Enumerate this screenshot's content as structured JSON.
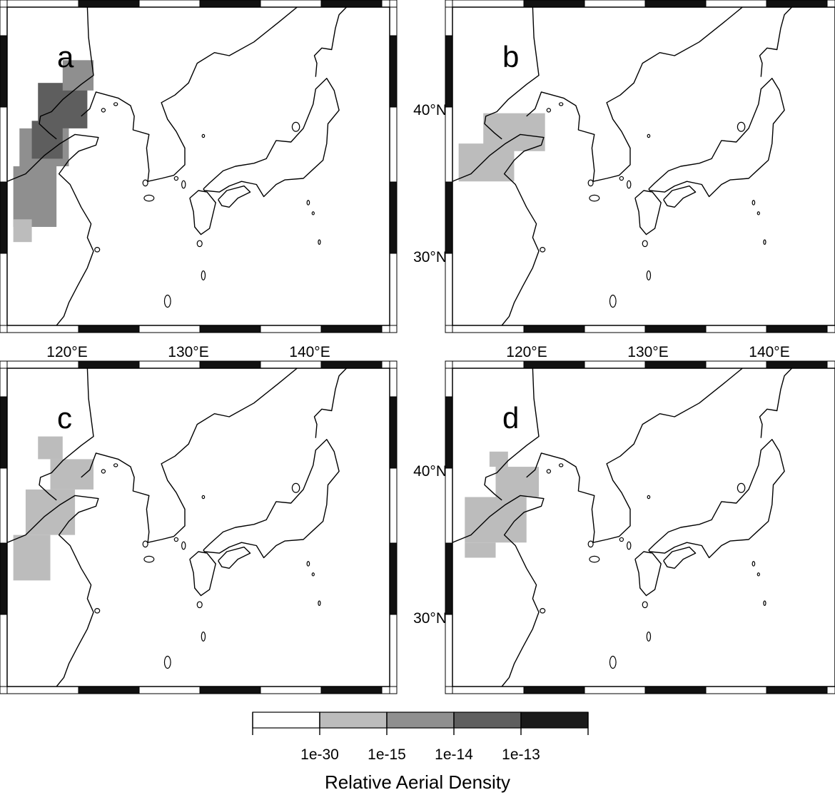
{
  "panels": [
    {
      "label": "a",
      "coverage": [
        {
          "lon": [
            115.5,
            119.0
          ],
          "lat": [
            31.5,
            35.5
          ],
          "level": 2
        },
        {
          "lon": [
            116.0,
            120.0
          ],
          "lat": [
            35.5,
            38.0
          ],
          "level": 2
        },
        {
          "lon": [
            117.0,
            119.5
          ],
          "lat": [
            36.0,
            38.5
          ],
          "level": 3
        },
        {
          "lon": [
            117.5,
            121.5
          ],
          "lat": [
            38.0,
            41.0
          ],
          "level": 3
        },
        {
          "lon": [
            119.5,
            122.0
          ],
          "lat": [
            40.5,
            42.5
          ],
          "level": 2
        },
        {
          "lon": [
            115.5,
            117.0
          ],
          "lat": [
            30.5,
            32.0
          ],
          "level": 1
        }
      ]
    },
    {
      "label": "b",
      "coverage": [
        {
          "lon": [
            115.5,
            120.0
          ],
          "lat": [
            34.5,
            37.0
          ],
          "level": 1
        },
        {
          "lon": [
            117.5,
            122.5
          ],
          "lat": [
            36.5,
            39.0
          ],
          "level": 1
        }
      ]
    },
    {
      "label": "c",
      "coverage": [
        {
          "lon": [
            117.5,
            119.5
          ],
          "lat": [
            40.0,
            41.5
          ],
          "level": 1
        },
        {
          "lon": [
            118.5,
            122.0
          ],
          "lat": [
            38.0,
            40.0
          ],
          "level": 1
        },
        {
          "lon": [
            116.5,
            120.5
          ],
          "lat": [
            35.0,
            38.0
          ],
          "level": 1
        },
        {
          "lon": [
            115.5,
            118.5
          ],
          "lat": [
            32.0,
            35.0
          ],
          "level": 1
        }
      ]
    },
    {
      "label": "d",
      "coverage": [
        {
          "lon": [
            118.0,
            119.5
          ],
          "lat": [
            39.5,
            40.5
          ],
          "level": 1
        },
        {
          "lon": [
            118.5,
            122.0
          ],
          "lat": [
            37.5,
            39.5
          ],
          "level": 1
        },
        {
          "lon": [
            116.0,
            121.0
          ],
          "lat": [
            34.5,
            37.5
          ],
          "level": 1
        },
        {
          "lon": [
            116.0,
            118.5
          ],
          "lat": [
            33.5,
            34.5
          ],
          "level": 1
        }
      ]
    }
  ],
  "axes": {
    "lon_ticks": [
      "120°E",
      "130°E",
      "140°E"
    ],
    "lat_ticks": [
      "40°N",
      "30°N"
    ],
    "extent": {
      "lon": [
        115,
        146
      ],
      "lat": [
        25,
        46
      ]
    }
  },
  "legend": {
    "title": "Relative Aerial Density",
    "tick_labels": [
      "1e-30",
      "1e-15",
      "1e-14",
      "1e-13"
    ],
    "colors": [
      "#ffffff",
      "#bcbcbc",
      "#8f8f8f",
      "#5e5e5e",
      "#1a1a1a"
    ]
  }
}
